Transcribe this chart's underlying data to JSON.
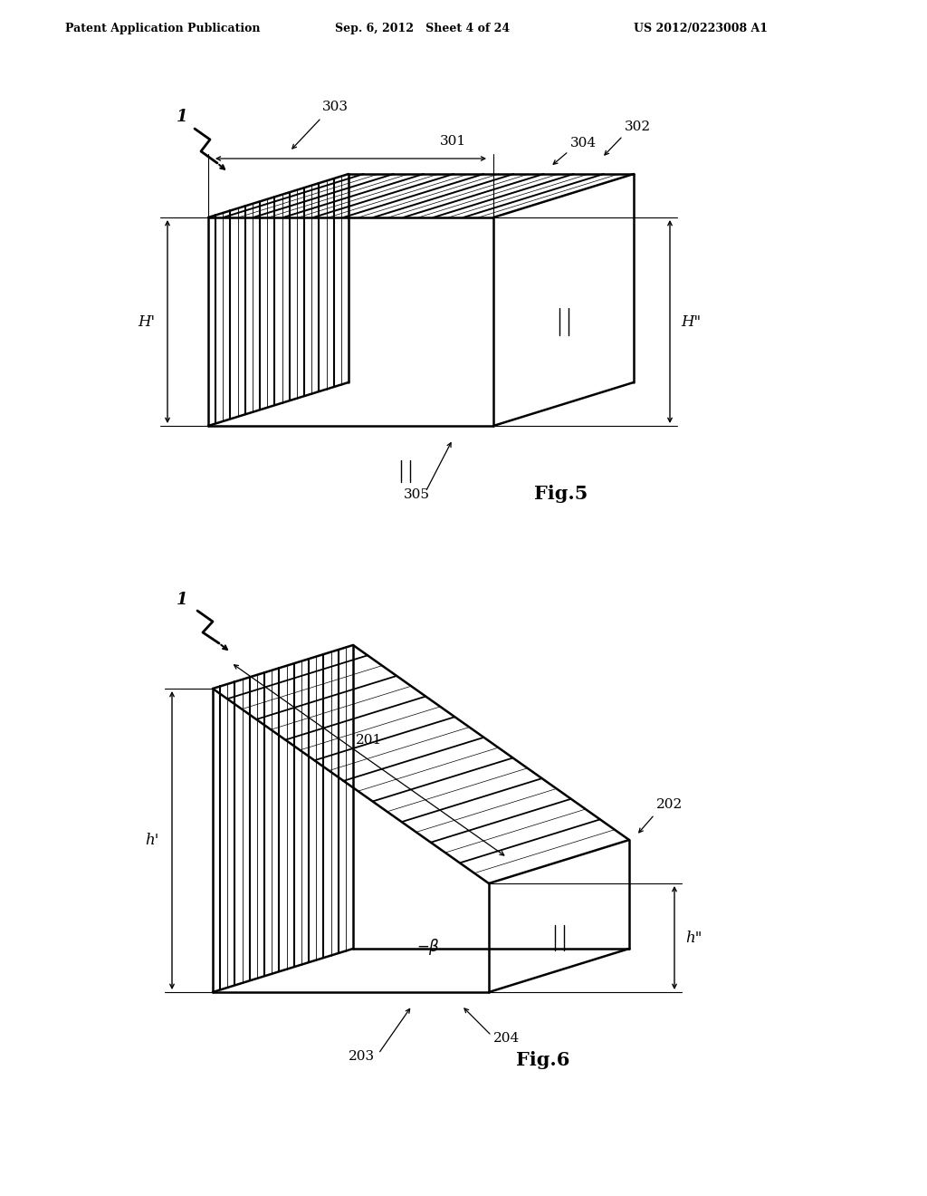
{
  "background_color": "#ffffff",
  "header_left": "Patent Application Publication",
  "header_mid": "Sep. 6, 2012   Sheet 4 of 24",
  "header_right": "US 2012/0223008 A1",
  "fig5_label": "Fig.5",
  "fig6_label": "Fig.6",
  "line_color": "#000000"
}
